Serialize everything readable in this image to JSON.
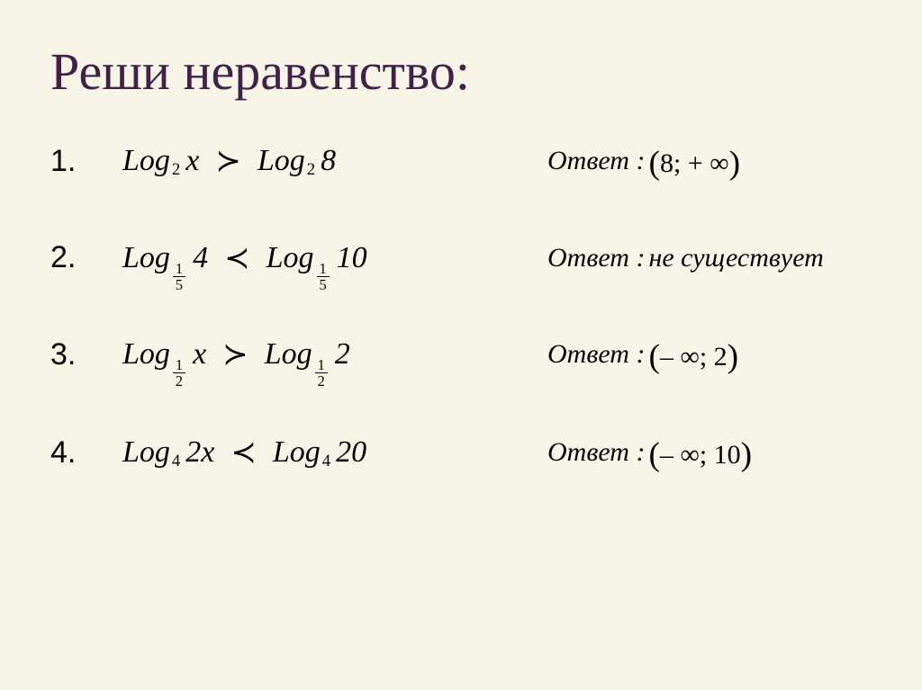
{
  "title": "Реши неравенство:",
  "background_color": "#f7f6e6",
  "title_color": "#43204a",
  "title_fontsize": 58,
  "rownum_font": "Arial",
  "rows": [
    {
      "num": "1.",
      "left": {
        "func": "Log",
        "sub_type": "int",
        "sub_num": "2",
        "sub_den": "",
        "arg": "x"
      },
      "rel": "≻",
      "right": {
        "func": "Log",
        "sub_type": "int",
        "sub_num": "2",
        "sub_den": "",
        "arg": "8"
      },
      "answer_label": "Ответ :",
      "answer_kind": "interval",
      "interval": {
        "open_l": "(",
        "a": "8;",
        "b": " + ∞",
        "open_r": ")"
      }
    },
    {
      "num": "2.",
      "left": {
        "func": "Log",
        "sub_type": "frac",
        "sub_num": "1",
        "sub_den": "5",
        "arg": "4"
      },
      "rel": "≺",
      "right": {
        "func": "Log",
        "sub_type": "frac",
        "sub_num": "1",
        "sub_den": "5",
        "arg": "10"
      },
      "answer_label": "Ответ :",
      "answer_kind": "text",
      "answer_text": "не существует"
    },
    {
      "num": "3.",
      "left": {
        "func": "Log",
        "sub_type": "frac",
        "sub_num": "1",
        "sub_den": "2",
        "arg": "x"
      },
      "rel": "≻",
      "right": {
        "func": "Log",
        "sub_type": "frac",
        "sub_num": "1",
        "sub_den": "2",
        "arg": "2"
      },
      "answer_label": "Ответ :",
      "answer_kind": "interval",
      "interval": {
        "open_l": "(",
        "a": "– ∞;",
        "b": " 2",
        "open_r": ")"
      }
    },
    {
      "num": "4.",
      "left": {
        "func": "Log",
        "sub_type": "int",
        "sub_num": "4",
        "sub_den": "",
        "arg": "2x"
      },
      "rel": "≺",
      "right": {
        "func": "Log",
        "sub_type": "int",
        "sub_num": "4",
        "sub_den": "",
        "arg": "20"
      },
      "answer_label": "Ответ :",
      "answer_kind": "interval",
      "interval": {
        "open_l": "(",
        "a": "– ∞;",
        "b": " 10",
        "open_r": ")"
      }
    }
  ]
}
